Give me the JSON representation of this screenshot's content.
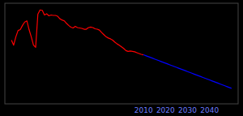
{
  "chart_data": {
    "type": "line",
    "series": [
      {
        "color": "#ff0000",
        "x": [
          1950,
          1951,
          1952,
          1953,
          1954,
          1955,
          1956,
          1957,
          1958,
          1959,
          1960,
          1961,
          1962,
          1963,
          1964,
          1965,
          1966,
          1967,
          1968,
          1969,
          1970,
          1971,
          1972,
          1973,
          1974,
          1975,
          1976,
          1977,
          1978,
          1979,
          1980,
          1981,
          1982,
          1983,
          1984,
          1985,
          1986,
          1987,
          1988,
          1989,
          1990,
          1991,
          1992,
          1993,
          1994,
          1995,
          1996,
          1997,
          1998,
          1999,
          2000,
          2001,
          2002,
          2003,
          2004,
          2005,
          2006,
          2007,
          2008,
          2009,
          2010
        ],
        "values": [
          1.47,
          1.35,
          1.55,
          1.7,
          1.72,
          1.82,
          1.9,
          1.93,
          1.72,
          1.55,
          1.35,
          1.3,
          2.09,
          2.19,
          2.18,
          2.07,
          2.1,
          2.05,
          2.07,
          2.06,
          2.06,
          2.04,
          1.98,
          1.95,
          1.93,
          1.87,
          1.82,
          1.78,
          1.76,
          1.8,
          1.77,
          1.76,
          1.75,
          1.73,
          1.73,
          1.77,
          1.78,
          1.77,
          1.74,
          1.73,
          1.71,
          1.65,
          1.6,
          1.55,
          1.52,
          1.5,
          1.47,
          1.42,
          1.38,
          1.35,
          1.31,
          1.27,
          1.22,
          1.2,
          1.21,
          1.2,
          1.19,
          1.17,
          1.15,
          1.13,
          1.12
        ]
      },
      {
        "color": "#0000ff",
        "x": [
          2010,
          2011,
          2012,
          2013,
          2014,
          2015,
          2016,
          2017,
          2018,
          2019,
          2020,
          2021,
          2022,
          2023,
          2024,
          2025,
          2026,
          2027,
          2028,
          2029,
          2030,
          2031,
          2032,
          2033,
          2034,
          2035,
          2036,
          2037,
          2038,
          2039,
          2040,
          2041,
          2042,
          2043,
          2044,
          2045,
          2046,
          2047,
          2048,
          2049,
          2050
        ],
        "values": [
          1.12,
          1.1,
          1.08,
          1.06,
          1.04,
          1.02,
          1.0,
          0.98,
          0.96,
          0.94,
          0.92,
          0.9,
          0.88,
          0.86,
          0.84,
          0.82,
          0.8,
          0.78,
          0.76,
          0.74,
          0.72,
          0.7,
          0.68,
          0.66,
          0.64,
          0.62,
          0.6,
          0.58,
          0.56,
          0.54,
          0.52,
          0.5,
          0.48,
          0.46,
          0.44,
          0.42,
          0.4,
          0.38,
          0.36,
          0.34,
          0.32
        ]
      }
    ],
    "xlim": [
      1947,
      2053
    ],
    "xticks": [
      2010,
      2020,
      2030,
      2040
    ],
    "ylim": [
      -0.05,
      2.35
    ],
    "tick_labels": "x",
    "grid": false
  }
}
